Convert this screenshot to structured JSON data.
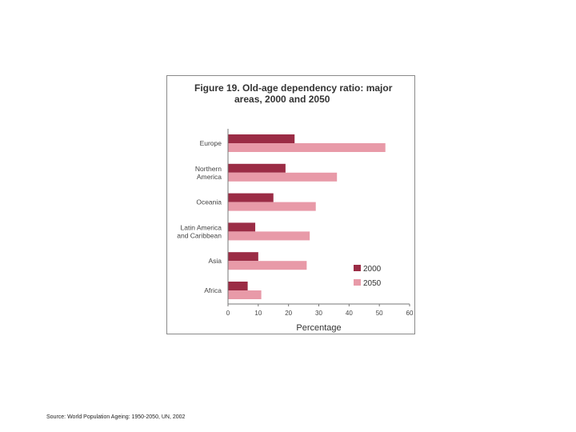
{
  "chart_data": {
    "type": "bar",
    "orientation": "horizontal",
    "title_lines": [
      "Figure 19.  Old-age dependency ratio: major",
      "areas, 2000 and 2050"
    ],
    "categories": [
      [
        "Europe"
      ],
      [
        "Northern",
        "America"
      ],
      [
        "Oceania"
      ],
      [
        "Latin America",
        "and Caribbean"
      ],
      [
        "Asia"
      ],
      [
        "Africa"
      ]
    ],
    "series": [
      {
        "name": "2000",
        "color": "#9b2c45",
        "values": [
          22,
          19,
          15,
          9,
          10,
          6.5
        ]
      },
      {
        "name": "2050",
        "color": "#e89aa8",
        "values": [
          52,
          36,
          29,
          27,
          26,
          11
        ]
      }
    ],
    "xlabel": "Percentage",
    "xlim": [
      0,
      60
    ],
    "xticks": [
      "0",
      "10",
      "20",
      "30",
      "40",
      "50",
      "60"
    ],
    "grid": false,
    "legend_position": "right"
  },
  "source": "Source: World Population Ageing:  1950-2050, UN, 2002"
}
